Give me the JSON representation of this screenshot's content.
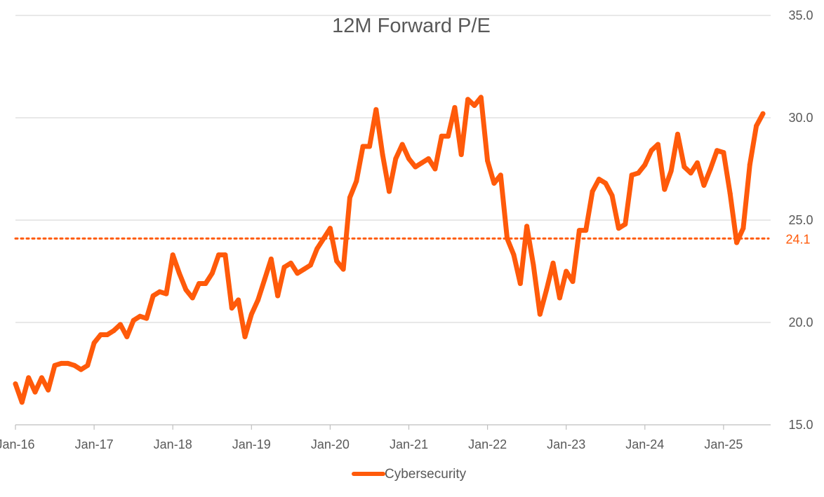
{
  "chart_data": {
    "type": "line",
    "title": "12M Forward P/E",
    "xlabel": "",
    "ylabel": "",
    "ylim": [
      15,
      35
    ],
    "y_ticks": [
      "15.0",
      "20.0",
      "25.0",
      "30.0",
      "35.0"
    ],
    "y_axis_side": "right",
    "x_ticks": [
      "Jan-16",
      "Jan-17",
      "Jan-18",
      "Jan-19",
      "Jan-20",
      "Jan-21",
      "Jan-22",
      "Jan-23",
      "Jan-24",
      "Jan-25"
    ],
    "grid": true,
    "legend_position": "bottom",
    "colors": {
      "line": "#ff5a0a",
      "average": "#ff5a0a",
      "grid": "#d9d9d9",
      "text": "#595959"
    },
    "reference_line": {
      "value": 24.1,
      "label": "24.1",
      "style": "dotted"
    },
    "series": [
      {
        "name": "Cybersecurity",
        "months_from_jan16": [
          0,
          1,
          2,
          3,
          4,
          5,
          6,
          7,
          8,
          9,
          10,
          11,
          12,
          13,
          14,
          15,
          16,
          17,
          18,
          19,
          20,
          21,
          22,
          23,
          24,
          25,
          26,
          27,
          28,
          29,
          30,
          31,
          32,
          33,
          34,
          35,
          36,
          37,
          38,
          39,
          40,
          41,
          42,
          43,
          44,
          45,
          46,
          47,
          48,
          49,
          50,
          51,
          52,
          53,
          54,
          55,
          56,
          57,
          58,
          59,
          60,
          61,
          62,
          63,
          64,
          65,
          66,
          67,
          68,
          69,
          70,
          71,
          72,
          73,
          74,
          75,
          76,
          77,
          78,
          79,
          80,
          81,
          82,
          83,
          84,
          85,
          86,
          87,
          88,
          89,
          90,
          91,
          92,
          93,
          94,
          95,
          96,
          97,
          98,
          99,
          100,
          101,
          102,
          103,
          104,
          105,
          106,
          107,
          108,
          109,
          110,
          111,
          112,
          113,
          114
        ],
        "values": [
          17.0,
          16.1,
          17.3,
          16.6,
          17.3,
          16.7,
          17.9,
          18.0,
          18.0,
          17.9,
          17.7,
          17.9,
          19.0,
          19.4,
          19.4,
          19.6,
          19.9,
          19.3,
          20.1,
          20.3,
          20.2,
          21.3,
          21.5,
          21.4,
          23.3,
          22.4,
          21.6,
          21.2,
          21.9,
          21.9,
          22.4,
          23.3,
          23.3,
          20.7,
          21.1,
          19.3,
          20.4,
          21.1,
          22.1,
          23.1,
          21.3,
          22.7,
          22.9,
          22.4,
          22.6,
          22.8,
          23.6,
          24.1,
          24.6,
          23.0,
          22.6,
          26.1,
          26.9,
          28.6,
          28.6,
          30.4,
          28.2,
          26.4,
          28.0,
          28.7,
          28.0,
          27.6,
          27.8,
          28.0,
          27.5,
          29.1,
          29.1,
          30.5,
          28.2,
          30.9,
          30.6,
          31.0,
          27.9,
          26.8,
          27.2,
          24.1,
          23.3,
          21.9,
          24.7,
          22.8,
          20.4,
          21.6,
          22.9,
          21.2,
          22.5,
          22.0,
          24.5,
          24.5,
          26.4,
          27.0,
          26.8,
          26.2,
          24.6,
          24.8,
          27.2,
          27.3,
          27.7,
          28.4,
          28.7,
          26.5,
          27.4,
          29.2,
          27.6,
          27.3,
          27.8,
          26.7,
          27.5,
          28.4,
          28.3,
          26.3,
          23.9,
          24.6,
          27.7,
          29.6,
          30.2
        ]
      }
    ]
  }
}
